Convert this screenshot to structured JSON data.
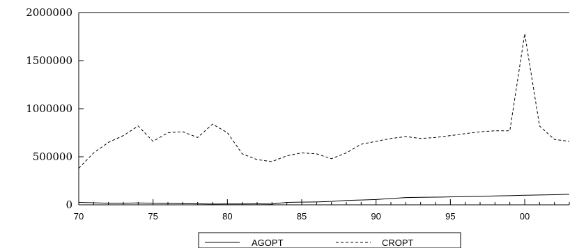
{
  "chart_data": {
    "type": "line",
    "title": "",
    "xlabel": "",
    "ylabel": "",
    "x": [
      1970,
      1971,
      1972,
      1973,
      1974,
      1975,
      1976,
      1977,
      1978,
      1979,
      1980,
      1981,
      1982,
      1983,
      1984,
      1985,
      1986,
      1987,
      1988,
      1989,
      1990,
      1991,
      1992,
      1993,
      1994,
      1995,
      1996,
      1997,
      1998,
      1999,
      2000,
      2001,
      2002,
      2003
    ],
    "xlim": [
      1970,
      2003
    ],
    "ylim": [
      0,
      2000000
    ],
    "x_ticks": [
      {
        "value": 1970,
        "label": "70"
      },
      {
        "value": 1975,
        "label": "75"
      },
      {
        "value": 1980,
        "label": "80"
      },
      {
        "value": 1985,
        "label": "85"
      },
      {
        "value": 1990,
        "label": "90"
      },
      {
        "value": 1995,
        "label": "95"
      },
      {
        "value": 2000,
        "label": "00"
      }
    ],
    "y_ticks": [
      {
        "value": 0,
        "label": "0"
      },
      {
        "value": 500000,
        "label": "500000"
      },
      {
        "value": 1000000,
        "label": "1000000"
      },
      {
        "value": 1500000,
        "label": "1500000"
      },
      {
        "value": 2000000,
        "label": "2000000"
      }
    ],
    "grid": false,
    "legend_position": "bottom",
    "series": [
      {
        "name": "AGOPT",
        "style": "solid",
        "color": "#000000",
        "values": [
          25000,
          22000,
          15000,
          15000,
          20000,
          15000,
          14000,
          12000,
          10000,
          8000,
          9000,
          9000,
          10000,
          8000,
          25000,
          28000,
          30000,
          35000,
          45000,
          50000,
          55000,
          65000,
          75000,
          78000,
          80000,
          82000,
          85000,
          88000,
          92000,
          95000,
          100000,
          102000,
          105000,
          110000
        ]
      },
      {
        "name": "CROPT",
        "style": "dashed",
        "color": "#000000",
        "values": [
          380000,
          540000,
          650000,
          720000,
          820000,
          660000,
          750000,
          760000,
          700000,
          840000,
          750000,
          530000,
          470000,
          450000,
          510000,
          540000,
          530000,
          480000,
          540000,
          630000,
          660000,
          690000,
          710000,
          690000,
          700000,
          720000,
          740000,
          760000,
          770000,
          770000,
          1780000,
          820000,
          680000,
          660000
        ]
      }
    ]
  }
}
